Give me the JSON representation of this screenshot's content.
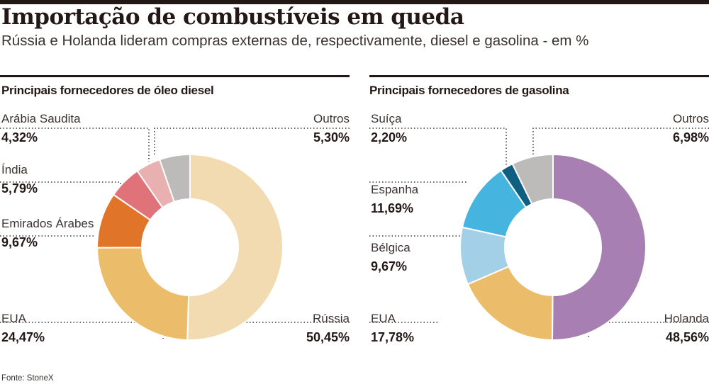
{
  "title": "Importação de combustíveis em queda",
  "subtitle": "Rússia e Holanda lideram compras externas de, respectivamente, diesel e gasolina - em %",
  "source": "Fonte: StoneX",
  "chart_data": [
    {
      "type": "pie",
      "title": "Principais fornecedores de óleo diesel",
      "donut": true,
      "slices": [
        {
          "label": "Rússia",
          "value": 50.45,
          "display": "50,45%",
          "color": "#f2dbb0"
        },
        {
          "label": "EUA",
          "value": 24.47,
          "display": "24,47%",
          "color": "#ebbd6a"
        },
        {
          "label": "Emirados Árabes",
          "value": 9.67,
          "display": "9,67%",
          "color": "#e07428"
        },
        {
          "label": "Índia",
          "value": 5.79,
          "display": "5,79%",
          "color": "#e0737a"
        },
        {
          "label": "Arábia Saudita",
          "value": 4.32,
          "display": "4,32%",
          "color": "#e8b0b0"
        },
        {
          "label": "Outros",
          "value": 5.3,
          "display": "5,30%",
          "color": "#bdbbb9"
        }
      ]
    },
    {
      "type": "pie",
      "title": "Principais fornecedores de gasolina",
      "donut": true,
      "slices": [
        {
          "label": "Holanda",
          "value": 48.56,
          "display": "48,56%",
          "color": "#a87fb3"
        },
        {
          "label": "EUA",
          "value": 17.78,
          "display": "17,78%",
          "color": "#ebbd6a"
        },
        {
          "label": "Bélgica",
          "value": 9.67,
          "display": "9,67%",
          "color": "#a3d0e6"
        },
        {
          "label": "Espanha",
          "value": 11.69,
          "display": "11,69%",
          "color": "#45b5e0"
        },
        {
          "label": "Suíça",
          "value": 2.2,
          "display": "2,20%",
          "color": "#0f5f82"
        },
        {
          "label": "Outros",
          "value": 6.98,
          "display": "6,98%",
          "color": "#bdbbb9"
        }
      ]
    }
  ]
}
